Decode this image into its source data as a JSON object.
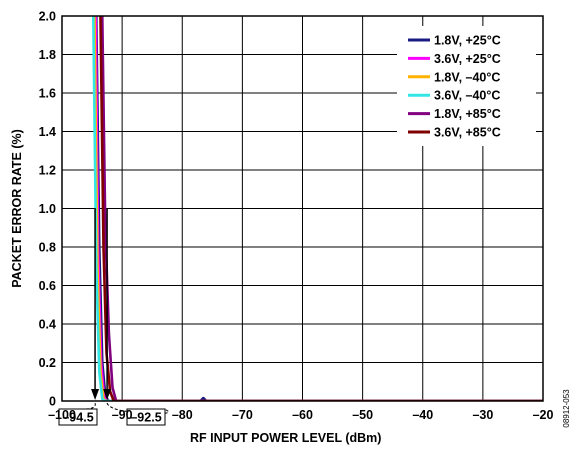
{
  "chart_data": {
    "type": "line",
    "title": "",
    "xlabel": "RF INPUT POWER LEVEL (dBm)",
    "ylabel": "PACKET ERROR RATE (%)",
    "xlim": [
      -100,
      -20
    ],
    "ylim": [
      0,
      2.0
    ],
    "x_ticks": [
      "–100",
      "–90",
      "–80",
      "–70",
      "–60",
      "–50",
      "–40",
      "–30",
      "–20"
    ],
    "y_ticks": [
      "0",
      "0.2",
      "0.4",
      "0.6",
      "0.8",
      "1.0",
      "1.2",
      "1.4",
      "1.6",
      "1.8",
      "2.0"
    ],
    "grid": true,
    "legend_position": "top-right",
    "series": [
      {
        "name": "1.8V, +25°C",
        "color": "#1a1a80",
        "points": [
          [
            -94.3,
            2.0
          ],
          [
            -93.8,
            0.8
          ],
          [
            -93.3,
            0.2
          ],
          [
            -92.8,
            0.03
          ],
          [
            -92.3,
            0
          ],
          [
            -77,
            0
          ],
          [
            -76.5,
            0.015
          ],
          [
            -76,
            0
          ],
          [
            -20,
            0
          ]
        ]
      },
      {
        "name": "3.6V, +25°C",
        "color": "#ff00ff",
        "points": [
          [
            -94.4,
            2.0
          ],
          [
            -94.0,
            0.8
          ],
          [
            -93.5,
            0.2
          ],
          [
            -93.0,
            0.02
          ],
          [
            -92.5,
            0
          ],
          [
            -20,
            0
          ]
        ]
      },
      {
        "name": "1.8V, –40°C",
        "color": "#ffb300",
        "points": [
          [
            -94.6,
            2.0
          ],
          [
            -94.1,
            0.7
          ],
          [
            -93.6,
            0.15
          ],
          [
            -93.1,
            0.01
          ],
          [
            -92.6,
            0
          ],
          [
            -20,
            0
          ]
        ]
      },
      {
        "name": "3.6V, –40°C",
        "color": "#33e6e6",
        "points": [
          [
            -94.8,
            2.0
          ],
          [
            -94.3,
            0.7
          ],
          [
            -93.8,
            0.15
          ],
          [
            -93.3,
            0.01
          ],
          [
            -92.8,
            0
          ],
          [
            -20,
            0
          ]
        ]
      },
      {
        "name": "1.8V, +85°C",
        "color": "#800080",
        "points": [
          [
            -93.3,
            2.0
          ],
          [
            -92.8,
            0.9
          ],
          [
            -92.2,
            0.35
          ],
          [
            -91.6,
            0.07
          ],
          [
            -91.0,
            0
          ],
          [
            -20,
            0
          ]
        ]
      },
      {
        "name": "3.6V, +85°C",
        "color": "#800000",
        "points": [
          [
            -93.6,
            2.0
          ],
          [
            -93.1,
            0.8
          ],
          [
            -92.6,
            0.25
          ],
          [
            -92.0,
            0.05
          ],
          [
            -91.4,
            0
          ],
          [
            -20,
            0
          ]
        ]
      }
    ],
    "annotations": [
      {
        "text": "–94.5",
        "x": -94.5
      },
      {
        "text": "–92.5",
        "x": -92.5
      }
    ],
    "figure_id": "08912-053"
  }
}
